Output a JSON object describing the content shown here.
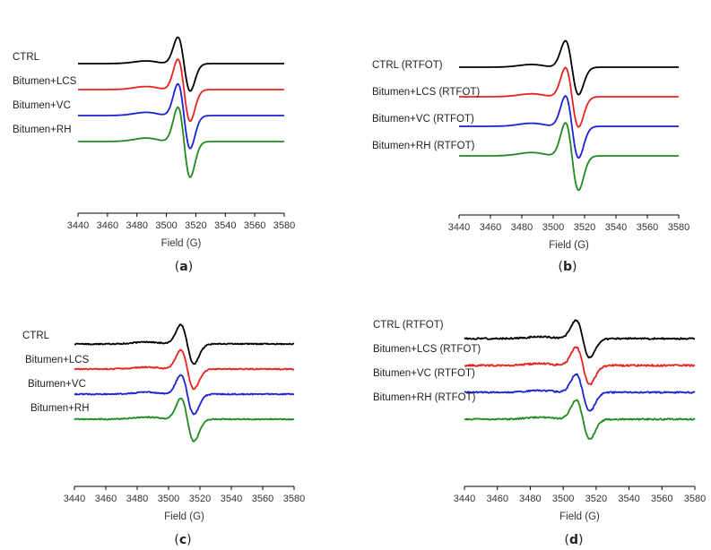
{
  "colors": {
    "CTRL": "#000000",
    "LCS": "#e8231e",
    "VC": "#1a22d4",
    "RH": "#1f8a1f"
  },
  "chart_data": [
    {
      "type": "line",
      "panel": "a",
      "xlabel": "Field (G)",
      "ylabel": "",
      "xlim": [
        3440,
        3580
      ],
      "xticks": [
        3440,
        3460,
        3480,
        3500,
        3520,
        3540,
        3560,
        3580
      ],
      "grid": false,
      "series": [
        {
          "name": "CTRL",
          "offset": 3.0,
          "amp": 1.0,
          "noise": 0.0
        },
        {
          "name": "Bitumen+LCS",
          "offset": 2.0,
          "amp": 1.15,
          "noise": 0.0
        },
        {
          "name": "Bitumen+VC",
          "offset": 1.0,
          "amp": 1.2,
          "noise": 0.0
        },
        {
          "name": "Bitumen+RH",
          "offset": 0.0,
          "amp": 1.3,
          "noise": 0.0
        }
      ]
    },
    {
      "type": "line",
      "panel": "b",
      "xlabel": "Field (G)",
      "ylabel": "",
      "xlim": [
        3440,
        3580
      ],
      "xticks": [
        3440,
        3460,
        3480,
        3500,
        3520,
        3540,
        3560,
        3580
      ],
      "grid": false,
      "series": [
        {
          "name": "CTRL (RTFOT)",
          "offset": 3.0,
          "amp": 1.0,
          "noise": 0.0
        },
        {
          "name": "Bitumen+LCS (RTFOT)",
          "offset": 2.0,
          "amp": 1.1,
          "noise": 0.0
        },
        {
          "name": "Bitumen+VC (RTFOT)",
          "offset": 1.0,
          "amp": 1.15,
          "noise": 0.0
        },
        {
          "name": "Bitumen+RH (RTFOT)",
          "offset": 0.0,
          "amp": 1.25,
          "noise": 0.0
        }
      ]
    },
    {
      "type": "line",
      "panel": "c",
      "xlabel": "Field (G)",
      "ylabel": "",
      "xlim": [
        3440,
        3580
      ],
      "xticks": [
        3440,
        3460,
        3480,
        3500,
        3520,
        3540,
        3560,
        3580
      ],
      "grid": false,
      "series": [
        {
          "name": "CTRL",
          "offset": 3.0,
          "amp": 1.0,
          "noise": 0.03
        },
        {
          "name": "Bitumen+LCS",
          "offset": 2.0,
          "amp": 1.0,
          "noise": 0.03
        },
        {
          "name": "Bitumen+VC",
          "offset": 1.0,
          "amp": 1.0,
          "noise": 0.03
        },
        {
          "name": "Bitumen+RH",
          "offset": 0.0,
          "amp": 1.1,
          "noise": 0.03
        }
      ]
    },
    {
      "type": "line",
      "panel": "d",
      "xlabel": "Field (G)",
      "ylabel": "",
      "xlim": [
        3440,
        3580
      ],
      "xticks": [
        3440,
        3460,
        3480,
        3500,
        3520,
        3540,
        3560,
        3580
      ],
      "grid": false,
      "series": [
        {
          "name": "CTRL (RTFOT)",
          "offset": 3.0,
          "amp": 1.0,
          "noise": 0.04
        },
        {
          "name": "Bitumen+LCS (RTFOT)",
          "offset": 2.0,
          "amp": 1.0,
          "noise": 0.05
        },
        {
          "name": "Bitumen+VC (RTFOT)",
          "offset": 1.0,
          "amp": 1.0,
          "noise": 0.04
        },
        {
          "name": "Bitumen+RH (RTFOT)",
          "offset": 0.0,
          "amp": 1.05,
          "noise": 0.04
        }
      ]
    }
  ]
}
